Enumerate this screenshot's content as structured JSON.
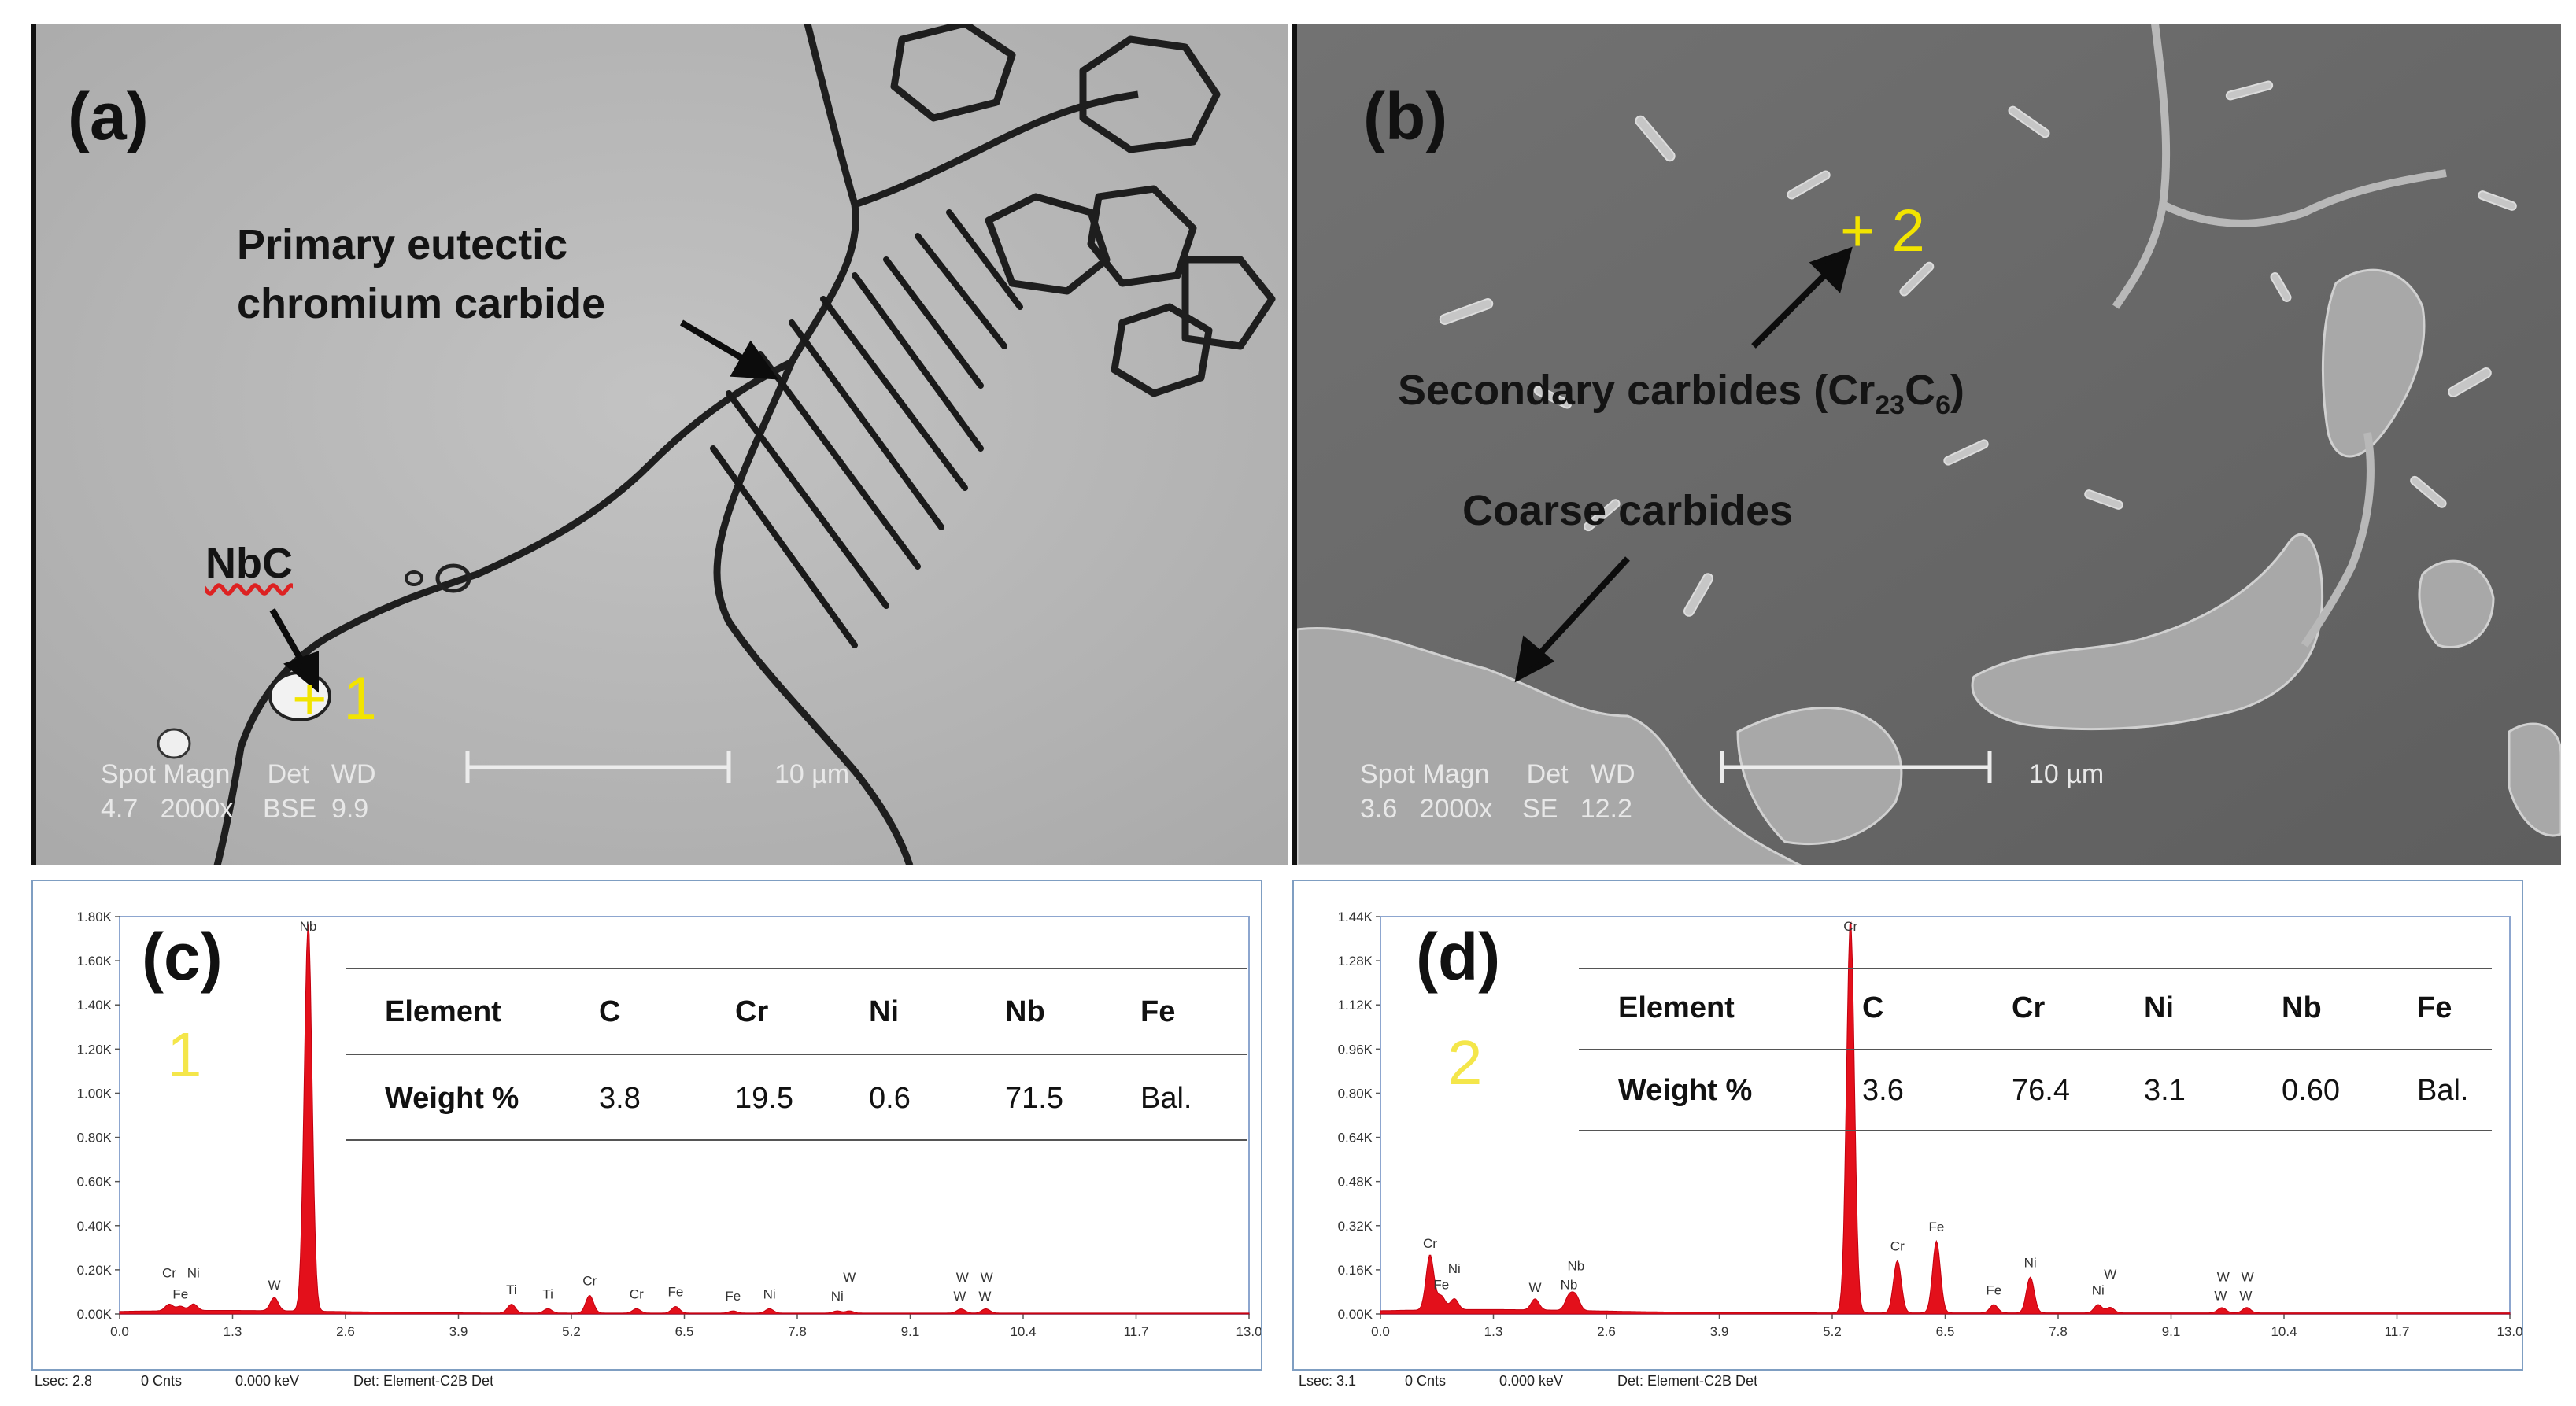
{
  "panels": {
    "a": {
      "label": "(a)",
      "annotations": {
        "primary_line1": "Primary eutectic",
        "primary_line2": "chromium carbide",
        "nbc": "NbC",
        "point": "+ 1"
      },
      "meta": {
        "row1": "Spot Magn     Det   WD",
        "row2": "4.7   2000x    BSE  9.9",
        "scale": "10 µm"
      }
    },
    "b": {
      "label": "(b)",
      "annotations": {
        "secondary_prefix": "Secondary carbides (Cr",
        "secondary_sub1": "23",
        "secondary_mid": "C",
        "secondary_sub2": "6",
        "secondary_suffix": ")",
        "coarse": "Coarse carbides",
        "point": "+ 2"
      },
      "meta": {
        "row1": "Spot Magn     Det   WD",
        "row2": "3.6   2000x    SE   12.2",
        "scale": "10 µm"
      }
    },
    "c": {
      "label": "(c)",
      "point_number": "1",
      "table": {
        "headers": [
          "Element",
          "C",
          "Cr",
          "Ni",
          "Nb",
          "Fe"
        ],
        "row": [
          "Weight %",
          "3.8",
          "19.5",
          "0.6",
          "71.5",
          "Bal."
        ]
      },
      "footer": [
        "Lsec: 2.8",
        "0 Cnts",
        "0.000 keV",
        "Det: Element-C2B Det"
      ]
    },
    "d": {
      "label": "(d)",
      "point_number": "2",
      "table": {
        "headers": [
          "Element",
          "C",
          "Cr",
          "Ni",
          "Nb",
          "Fe"
        ],
        "row": [
          "Weight %",
          "3.6",
          "76.4",
          "3.1",
          "0.60",
          "Bal."
        ]
      },
      "footer": [
        "Lsec: 3.1",
        "0 Cnts",
        "0.000 keV",
        "Det: Element-C2B Det"
      ]
    }
  },
  "chart_data": [
    {
      "type": "line",
      "panel": "c",
      "x_ticks": [
        "0.0",
        "1.3",
        "2.6",
        "3.9",
        "5.2",
        "6.5",
        "7.8",
        "9.1",
        "10.4",
        "11.7",
        "13.0"
      ],
      "y_ticks": [
        "0.00K",
        "0.20K",
        "0.40K",
        "0.60K",
        "0.80K",
        "1.00K",
        "1.20K",
        "1.40K",
        "1.60K",
        "1.80K"
      ],
      "xlim": [
        0,
        13.0
      ],
      "ylim": [
        0,
        1.8
      ],
      "peaks": [
        {
          "label": "Nb",
          "x": 2.17,
          "y": 1.76
        },
        {
          "label": "Fe",
          "x": 0.7,
          "y": 0.02
        },
        {
          "label": "Cr",
          "x": 0.57,
          "y": 0.03
        },
        {
          "label": "Ni",
          "x": 0.85,
          "y": 0.03
        },
        {
          "label": "W",
          "x": 1.78,
          "y": 0.06
        },
        {
          "label": "Ti",
          "x": 4.51,
          "y": 0.04
        },
        {
          "label": "Ti",
          "x": 4.93,
          "y": 0.02
        },
        {
          "label": "Cr",
          "x": 5.41,
          "y": 0.08
        },
        {
          "label": "Cr",
          "x": 5.95,
          "y": 0.02
        },
        {
          "label": "Fe",
          "x": 6.4,
          "y": 0.03
        },
        {
          "label": "Fe",
          "x": 7.06,
          "y": 0.01
        },
        {
          "label": "Ni",
          "x": 7.48,
          "y": 0.02
        },
        {
          "label": "Ni",
          "x": 8.26,
          "y": 0.01
        },
        {
          "label": "W",
          "x": 8.4,
          "y": 0.01
        },
        {
          "label": "W",
          "x": 9.67,
          "y": 0.01
        },
        {
          "label": "W",
          "x": 9.96,
          "y": 0.01
        },
        {
          "label": "W",
          "x": 9.7,
          "y": 0.01
        },
        {
          "label": "W",
          "x": 9.98,
          "y": 0.01
        }
      ]
    },
    {
      "type": "line",
      "panel": "d",
      "x_ticks": [
        "0.0",
        "1.3",
        "2.6",
        "3.9",
        "5.2",
        "6.5",
        "7.8",
        "9.1",
        "10.4",
        "11.7",
        "13.0"
      ],
      "y_ticks": [
        "0.00K",
        "0.16K",
        "0.32K",
        "0.48K",
        "0.64K",
        "0.80K",
        "0.96K",
        "1.12K",
        "1.28K",
        "1.44K"
      ],
      "xlim": [
        0,
        13.0
      ],
      "ylim": [
        0,
        1.44
      ],
      "peaks": [
        {
          "label": "Cr",
          "x": 5.41,
          "y": 1.43
        },
        {
          "label": "Fe",
          "x": 0.7,
          "y": 0.05
        },
        {
          "label": "Cr",
          "x": 0.57,
          "y": 0.2
        },
        {
          "label": "Ni",
          "x": 0.85,
          "y": 0.04
        },
        {
          "label": "W",
          "x": 1.78,
          "y": 0.04
        },
        {
          "label": "Nb",
          "x": 2.17,
          "y": 0.05
        },
        {
          "label": "Nb",
          "x": 2.25,
          "y": 0.05
        },
        {
          "label": "Cr",
          "x": 5.95,
          "y": 0.19
        },
        {
          "label": "Fe",
          "x": 6.4,
          "y": 0.26
        },
        {
          "label": "Fe",
          "x": 7.06,
          "y": 0.03
        },
        {
          "label": "Ni",
          "x": 7.48,
          "y": 0.13
        },
        {
          "label": "Ni",
          "x": 8.26,
          "y": 0.03
        },
        {
          "label": "W",
          "x": 8.4,
          "y": 0.02
        },
        {
          "label": "W",
          "x": 9.67,
          "y": 0.01
        },
        {
          "label": "W",
          "x": 9.96,
          "y": 0.01
        },
        {
          "label": "W",
          "x": 9.7,
          "y": 0.01
        },
        {
          "label": "W",
          "x": 9.98,
          "y": 0.01
        }
      ]
    }
  ]
}
